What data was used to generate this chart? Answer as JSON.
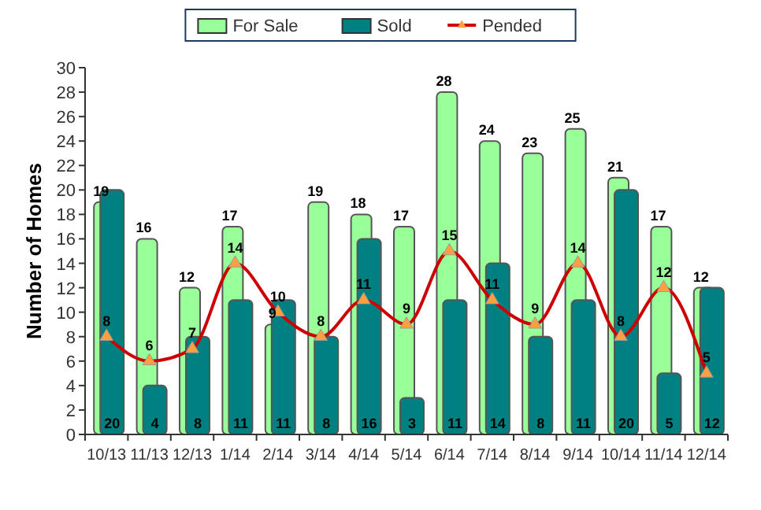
{
  "chart_data": {
    "type": "bar",
    "ylabel": "Number of Homes",
    "categories": [
      "10/13",
      "11/13",
      "12/13",
      "1/14",
      "2/14",
      "3/14",
      "4/14",
      "5/14",
      "6/14",
      "7/14",
      "8/14",
      "9/14",
      "10/14",
      "11/14",
      "12/14"
    ],
    "series": [
      {
        "name": "For Sale",
        "color": "#99ff99",
        "values": [
          19,
          16,
          12,
          17,
          9,
          19,
          18,
          17,
          28,
          24,
          23,
          25,
          21,
          17,
          12
        ]
      },
      {
        "name": "Sold",
        "color": "#008080",
        "values": [
          20,
          4,
          8,
          11,
          11,
          8,
          16,
          3,
          11,
          14,
          8,
          11,
          20,
          5,
          12
        ]
      },
      {
        "name": "Pended",
        "type": "line",
        "color": "#cc0000",
        "marker": "triangle",
        "values": [
          8,
          6,
          7,
          14,
          10,
          8,
          11,
          9,
          15,
          11,
          9,
          14,
          8,
          12,
          5
        ]
      }
    ],
    "ylim": [
      0,
      30
    ],
    "yticks": [
      0,
      2,
      4,
      6,
      8,
      10,
      12,
      14,
      16,
      18,
      20,
      22,
      24,
      26,
      28,
      30
    ],
    "grid": false,
    "legend": "top",
    "data_labels": true
  }
}
